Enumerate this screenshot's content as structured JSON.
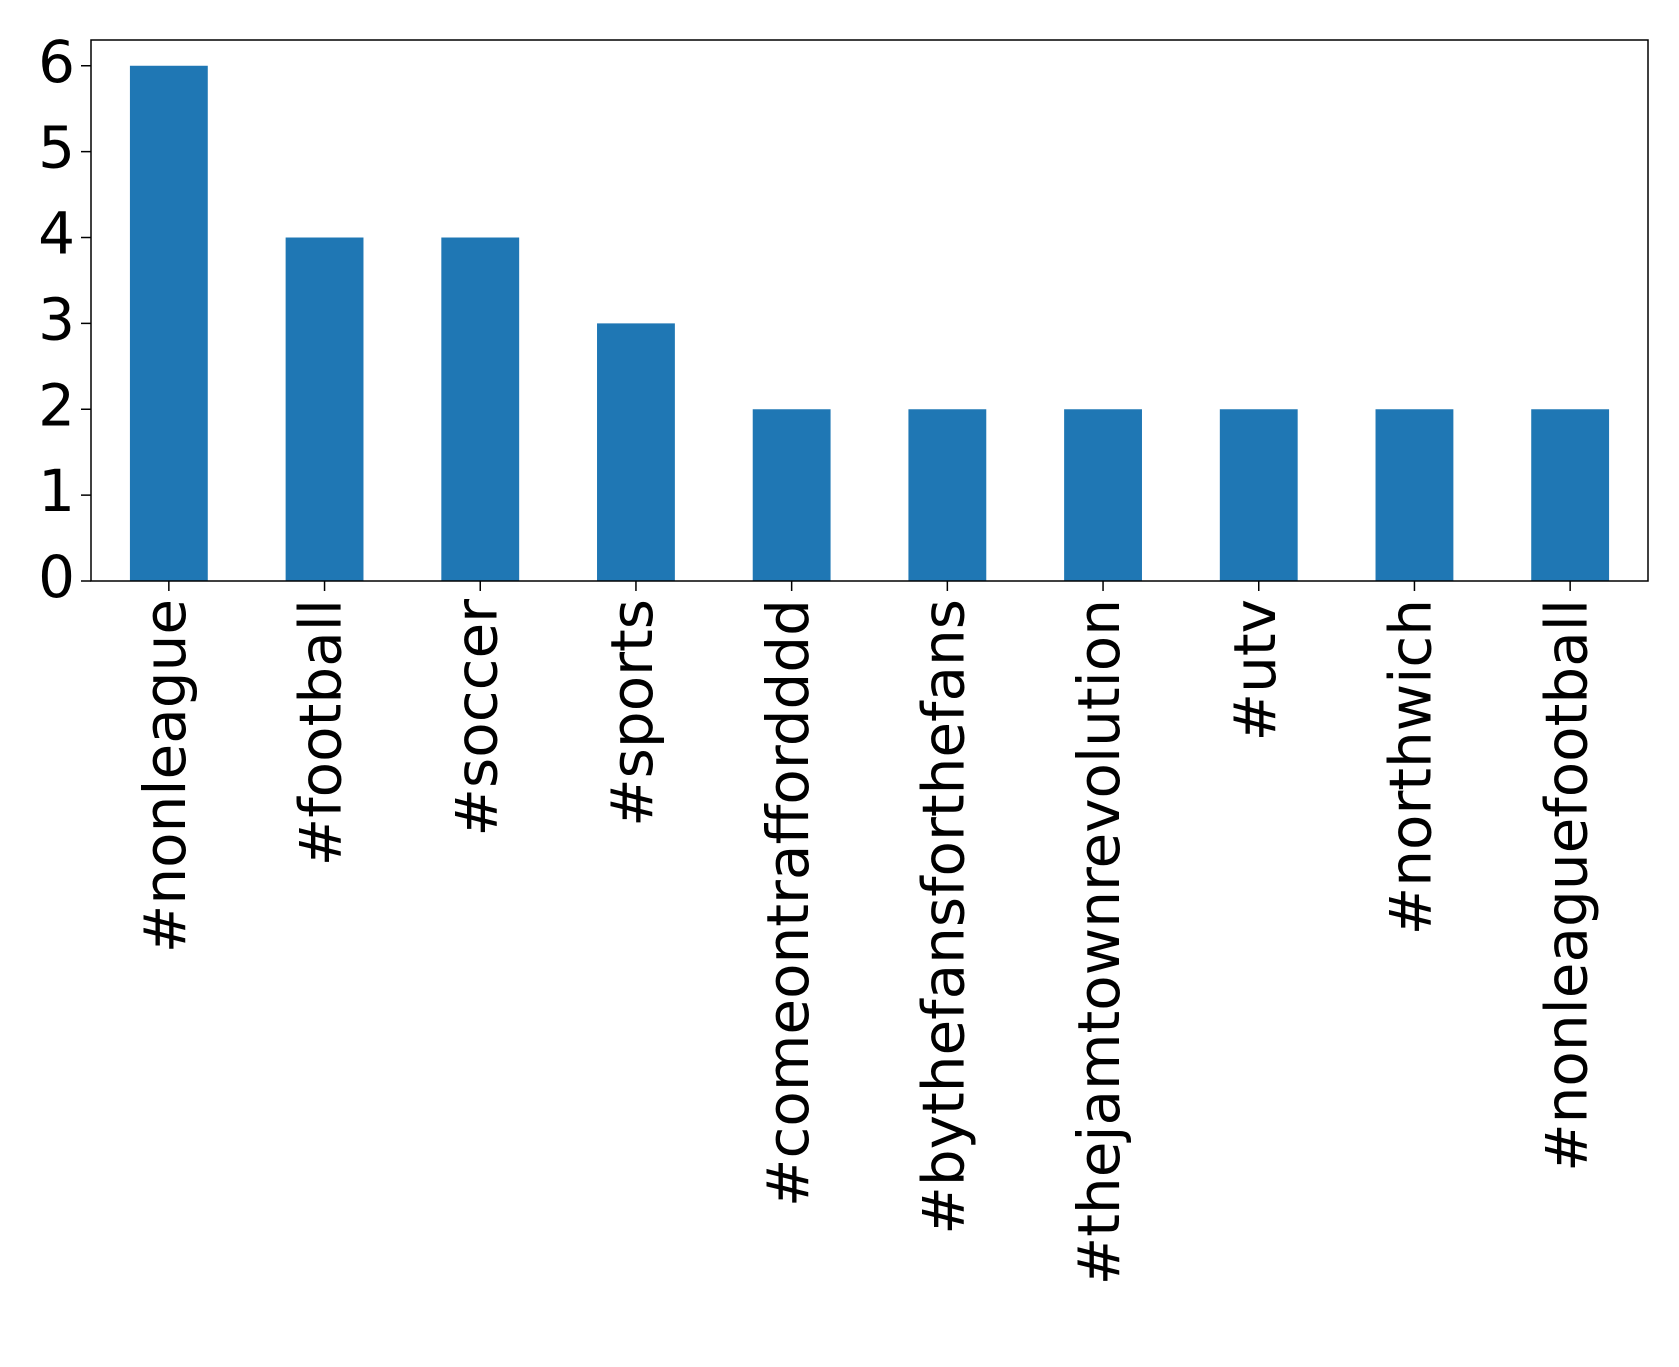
{
  "chart_data": {
    "type": "bar",
    "categories": [
      "#nonleague",
      "#football",
      "#soccer",
      "#sports",
      "#comeontraffordddd",
      "#bythefansforthefans",
      "#thejamtownrevolution",
      "#utv",
      "#northwich",
      "#nonleaguefootball"
    ],
    "values": [
      6,
      4,
      4,
      3,
      2,
      2,
      2,
      2,
      2,
      2
    ],
    "color": "#1f77b4",
    "ylim": [
      0,
      6.3
    ],
    "yticks": [
      0,
      1,
      2,
      3,
      4,
      5,
      6
    ],
    "grid": false
  }
}
